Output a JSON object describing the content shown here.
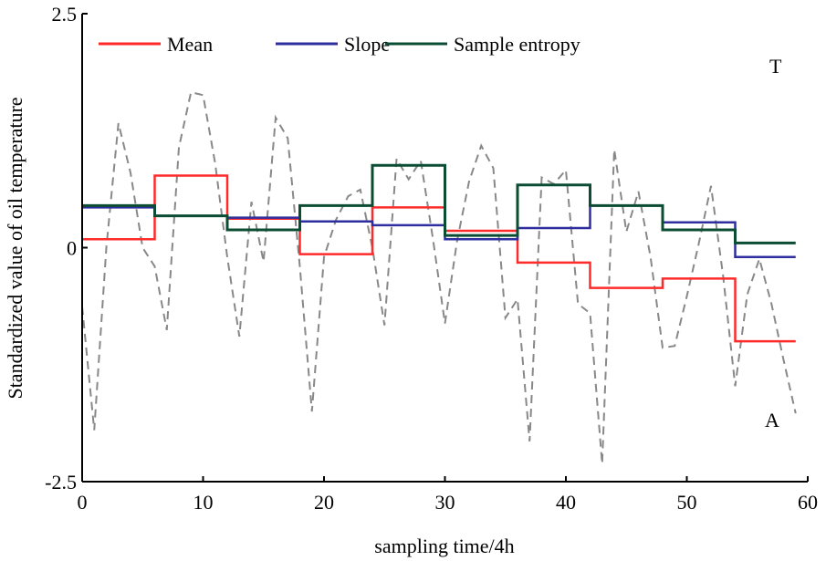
{
  "chart_data": {
    "type": "line",
    "title": "",
    "xlabel": "sampling time/4h",
    "ylabel": "Standardized value of oil temperature",
    "xlim": [
      0,
      60
    ],
    "ylim": [
      -2.5,
      2.5
    ],
    "xticks": [
      "0",
      "10",
      "20",
      "30",
      "40",
      "50",
      "60"
    ],
    "yticks": [
      "2.5",
      "0",
      "-2.5"
    ],
    "grid": false,
    "legend_position": "top-left",
    "annotations": [
      "T",
      "A"
    ],
    "colors": {
      "Mean": "#ff2a2a",
      "Slope": "#2e2e9e",
      "Sample entropy": "#0b4d33",
      "raw": "#888888"
    },
    "step_edges": [
      0,
      6,
      12,
      18,
      24,
      30,
      36,
      42,
      48,
      54,
      59
    ],
    "series": [
      {
        "name": "Mean",
        "style": "step",
        "values": [
          0.09,
          0.77,
          0.31,
          -0.07,
          0.43,
          0.18,
          -0.16,
          -0.43,
          -0.33,
          -1.0
        ]
      },
      {
        "name": "Slope",
        "style": "step",
        "values": [
          0.43,
          0.34,
          0.32,
          0.28,
          0.24,
          0.09,
          0.21,
          0.45,
          0.27,
          -0.1
        ]
      },
      {
        "name": "Sample entropy",
        "style": "step",
        "values": [
          0.45,
          0.34,
          0.19,
          0.45,
          0.88,
          0.13,
          0.67,
          0.45,
          0.19,
          0.05
        ]
      }
    ],
    "raw_series": {
      "style": "dashed",
      "x": [
        0,
        1,
        2,
        3,
        4,
        5,
        6,
        7,
        8,
        9,
        10,
        11,
        12,
        13,
        14,
        15,
        16,
        17,
        18,
        19,
        20,
        21,
        22,
        23,
        24,
        25,
        26,
        27,
        28,
        29,
        30,
        31,
        32,
        33,
        34,
        35,
        36,
        37,
        38,
        39,
        40,
        41,
        42,
        43,
        44,
        45,
        46,
        47,
        48,
        49,
        50,
        51,
        52,
        53,
        54,
        55,
        56,
        57,
        58,
        59
      ],
      "y": [
        -0.63,
        -1.95,
        0.0,
        1.33,
        0.8,
        0.0,
        -0.2,
        -0.88,
        1.07,
        1.66,
        1.63,
        0.9,
        -0.1,
        -0.95,
        0.49,
        -0.15,
        1.39,
        1.17,
        -0.2,
        -1.75,
        -0.1,
        0.3,
        0.55,
        0.62,
        0.0,
        -0.83,
        0.95,
        0.73,
        0.93,
        0.1,
        -0.81,
        0.07,
        0.71,
        1.09,
        0.85,
        -0.75,
        -0.55,
        -2.07,
        0.75,
        0.68,
        0.83,
        -0.6,
        -0.7,
        -2.31,
        1.05,
        0.17,
        0.6,
        -0.1,
        -1.07,
        -1.05,
        -0.52,
        0.05,
        0.66,
        -0.3,
        -1.48,
        -0.5,
        -0.12,
        -0.6,
        -1.2,
        -1.77
      ]
    }
  }
}
